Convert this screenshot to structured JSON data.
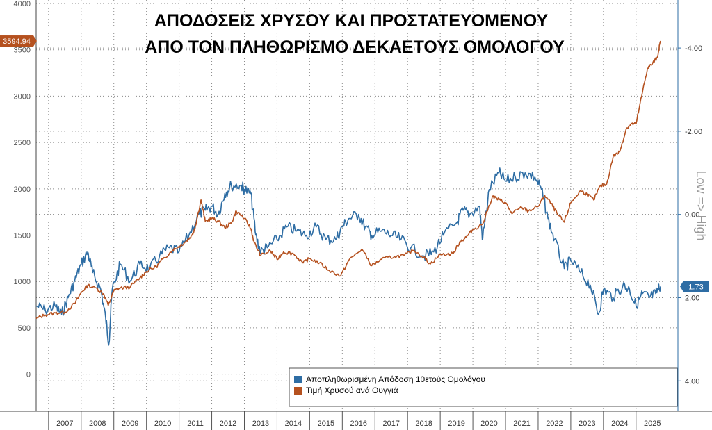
{
  "chart_data": {
    "type": "line",
    "title_lines": [
      "ΑΠΟΔΟΣΕΙΣ ΧΡΥΣΟΥ ΚΑΙ ΠΡΟΣΤΑΤΕΥΟΜΕΝΟΥ",
      "ΑΠΟ ΤΟΝ ΠΛΗΘΩΡΙΣΜΟ ΔΕΚΑΕΤΟΥΣ ΟΜΟΛΟΓΟΥ"
    ],
    "x_ticks": [
      "2007",
      "2008",
      "2009",
      "2010",
      "2011",
      "2012",
      "2013",
      "2014",
      "2015",
      "2016",
      "2017",
      "2018",
      "2019",
      "2020",
      "2021",
      "2022",
      "2023",
      "2024",
      "2025"
    ],
    "x_range": [
      2006.62,
      2025.75
    ],
    "y_left": {
      "range": [
        -400,
        4000
      ],
      "ticks": [
        "0",
        "500",
        "1000",
        "1500",
        "2000",
        "2500",
        "3000",
        "3500",
        "4000"
      ]
    },
    "y_right": {
      "range": [
        4.73,
        -5.07
      ],
      "ticks": [
        "-4.00",
        "-2.00",
        "0.00",
        "2.00",
        "4.00"
      ],
      "inverted": true,
      "label": "Low => High"
    },
    "last_value_badges": {
      "gold": "3594.94",
      "yield": "1.73"
    },
    "colors": {
      "gold": "#b5511f",
      "yield": "#2e6da4"
    },
    "legend": {
      "placement": "bottom-right",
      "entries": [
        "Αποπληθωρισμένη Απόδοση 10ετούς Ομολόγου",
        "Τιμή Χρυσού ανά Ουγγιά"
      ]
    },
    "grid": true,
    "series": [
      {
        "name": "Τιμή Χρυσού ανά Ουγγιά",
        "axis": "left",
        "points": [
          [
            2006.62,
            600
          ],
          [
            2006.9,
            640
          ],
          [
            2007.2,
            660
          ],
          [
            2007.5,
            670
          ],
          [
            2007.8,
            760
          ],
          [
            2008.0,
            880
          ],
          [
            2008.2,
            960
          ],
          [
            2008.5,
            920
          ],
          [
            2008.7,
            860
          ],
          [
            2008.83,
            740
          ],
          [
            2009.0,
            900
          ],
          [
            2009.2,
            930
          ],
          [
            2009.5,
            940
          ],
          [
            2009.8,
            1040
          ],
          [
            2010.0,
            1110
          ],
          [
            2010.3,
            1160
          ],
          [
            2010.5,
            1240
          ],
          [
            2010.8,
            1340
          ],
          [
            2011.0,
            1380
          ],
          [
            2011.2,
            1430
          ],
          [
            2011.4,
            1500
          ],
          [
            2011.5,
            1600
          ],
          [
            2011.67,
            1880
          ],
          [
            2011.8,
            1650
          ],
          [
            2012.0,
            1680
          ],
          [
            2012.2,
            1650
          ],
          [
            2012.4,
            1580
          ],
          [
            2012.6,
            1630
          ],
          [
            2012.75,
            1760
          ],
          [
            2013.0,
            1680
          ],
          [
            2013.2,
            1570
          ],
          [
            2013.3,
            1420
          ],
          [
            2013.5,
            1280
          ],
          [
            2013.8,
            1330
          ],
          [
            2014.0,
            1240
          ],
          [
            2014.2,
            1320
          ],
          [
            2014.5,
            1300
          ],
          [
            2014.8,
            1200
          ],
          [
            2015.0,
            1250
          ],
          [
            2015.3,
            1200
          ],
          [
            2015.6,
            1120
          ],
          [
            2015.95,
            1060
          ],
          [
            2016.2,
            1230
          ],
          [
            2016.6,
            1350
          ],
          [
            2016.9,
            1170
          ],
          [
            2017.2,
            1240
          ],
          [
            2017.6,
            1270
          ],
          [
            2017.9,
            1280
          ],
          [
            2018.2,
            1340
          ],
          [
            2018.5,
            1260
          ],
          [
            2018.7,
            1190
          ],
          [
            2019.0,
            1290
          ],
          [
            2019.4,
            1300
          ],
          [
            2019.6,
            1430
          ],
          [
            2019.8,
            1480
          ],
          [
            2020.0,
            1560
          ],
          [
            2020.3,
            1620
          ],
          [
            2020.6,
            1920
          ],
          [
            2020.8,
            1880
          ],
          [
            2021.0,
            1850
          ],
          [
            2021.2,
            1730
          ],
          [
            2021.5,
            1800
          ],
          [
            2021.7,
            1760
          ],
          [
            2022.0,
            1810
          ],
          [
            2022.2,
            1930
          ],
          [
            2022.4,
            1840
          ],
          [
            2022.6,
            1720
          ],
          [
            2022.8,
            1640
          ],
          [
            2023.0,
            1850
          ],
          [
            2023.3,
            1980
          ],
          [
            2023.5,
            1940
          ],
          [
            2023.7,
            1880
          ],
          [
            2023.9,
            2030
          ],
          [
            2024.1,
            2050
          ],
          [
            2024.3,
            2350
          ],
          [
            2024.5,
            2400
          ],
          [
            2024.7,
            2650
          ],
          [
            2024.85,
            2700
          ],
          [
            2025.0,
            2700
          ],
          [
            2025.2,
            3050
          ],
          [
            2025.35,
            3300
          ],
          [
            2025.5,
            3350
          ],
          [
            2025.65,
            3420
          ],
          [
            2025.75,
            3594.94
          ]
        ]
      },
      {
        "name": "Αποπληθωρισμένη Απόδοση 10ετούς Ομολόγου",
        "axis": "right",
        "points": [
          [
            2006.62,
            2.2
          ],
          [
            2006.9,
            2.3
          ],
          [
            2007.2,
            2.2
          ],
          [
            2007.4,
            2.4
          ],
          [
            2007.6,
            2.0
          ],
          [
            2007.8,
            1.6
          ],
          [
            2008.0,
            1.2
          ],
          [
            2008.2,
            0.9
          ],
          [
            2008.35,
            1.4
          ],
          [
            2008.6,
            1.8
          ],
          [
            2008.75,
            2.5
          ],
          [
            2008.85,
            3.1
          ],
          [
            2008.95,
            1.8
          ],
          [
            2009.2,
            1.2
          ],
          [
            2009.5,
            1.6
          ],
          [
            2009.8,
            1.2
          ],
          [
            2010.1,
            1.3
          ],
          [
            2010.4,
            1.0
          ],
          [
            2010.7,
            0.8
          ],
          [
            2011.0,
            0.9
          ],
          [
            2011.3,
            0.5
          ],
          [
            2011.6,
            0.0
          ],
          [
            2011.8,
            -0.1
          ],
          [
            2012.0,
            -0.2
          ],
          [
            2012.2,
            0.0
          ],
          [
            2012.4,
            -0.5
          ],
          [
            2012.6,
            -0.7
          ],
          [
            2012.9,
            -0.7
          ],
          [
            2013.0,
            -0.6
          ],
          [
            2013.2,
            -0.5
          ],
          [
            2013.35,
            0.5
          ],
          [
            2013.5,
            0.9
          ],
          [
            2013.7,
            0.8
          ],
          [
            2014.0,
            0.6
          ],
          [
            2014.3,
            0.3
          ],
          [
            2014.6,
            0.4
          ],
          [
            2014.9,
            0.5
          ],
          [
            2015.2,
            0.3
          ],
          [
            2015.5,
            0.6
          ],
          [
            2015.8,
            0.6
          ],
          [
            2016.0,
            0.3
          ],
          [
            2016.2,
            0.1
          ],
          [
            2016.5,
            0.0
          ],
          [
            2016.7,
            0.3
          ],
          [
            2016.9,
            0.5
          ],
          [
            2017.2,
            0.4
          ],
          [
            2017.5,
            0.5
          ],
          [
            2017.8,
            0.6
          ],
          [
            2018.1,
            0.8
          ],
          [
            2018.5,
            1.0
          ],
          [
            2018.8,
            0.9
          ],
          [
            2019.1,
            0.5
          ],
          [
            2019.5,
            0.2
          ],
          [
            2019.7,
            -0.1
          ],
          [
            2019.9,
            0.0
          ],
          [
            2020.2,
            -0.2
          ],
          [
            2020.3,
            0.6
          ],
          [
            2020.5,
            -0.6
          ],
          [
            2020.8,
            -1.0
          ],
          [
            2021.0,
            -0.8
          ],
          [
            2021.3,
            -0.9
          ],
          [
            2021.6,
            -1.0
          ],
          [
            2021.9,
            -0.9
          ],
          [
            2022.1,
            -0.6
          ],
          [
            2022.3,
            0.1
          ],
          [
            2022.5,
            0.6
          ],
          [
            2022.8,
            1.3
          ],
          [
            2023.0,
            1.1
          ],
          [
            2023.3,
            1.4
          ],
          [
            2023.6,
            1.7
          ],
          [
            2023.85,
            2.4
          ],
          [
            2024.0,
            1.8
          ],
          [
            2024.3,
            2.0
          ],
          [
            2024.6,
            1.7
          ],
          [
            2024.8,
            1.8
          ],
          [
            2025.0,
            2.2
          ],
          [
            2025.2,
            1.9
          ],
          [
            2025.4,
            2.0
          ],
          [
            2025.6,
            1.9
          ],
          [
            2025.75,
            1.73
          ]
        ]
      }
    ]
  }
}
